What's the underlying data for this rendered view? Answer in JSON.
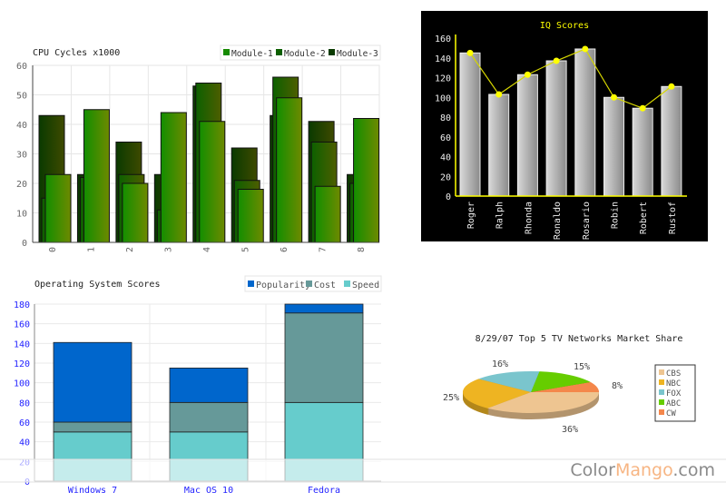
{
  "chart_data": [
    {
      "type": "bar",
      "title": "CPU Cycles x1000",
      "categories": [
        "0",
        "1",
        "2",
        "3",
        "4",
        "5",
        "6",
        "7",
        "8"
      ],
      "ylim": [
        0,
        60
      ],
      "yticks": [
        "0",
        "10",
        "20",
        "30",
        "40",
        "50",
        "60"
      ],
      "grid": true,
      "legend": "top-right",
      "series": [
        {
          "name": "Module-1",
          "values": [
            23,
            45,
            20,
            44,
            41,
            18,
            49,
            19,
            42
          ],
          "color": "#158a00"
        },
        {
          "name": "Module-2",
          "values": [
            15,
            22,
            23,
            11,
            54,
            21,
            56,
            34,
            20
          ],
          "color": "#0c5e00"
        },
        {
          "name": "Module-3",
          "values": [
            43,
            23,
            34,
            23,
            53,
            32,
            43,
            41,
            23
          ],
          "color": "#0a3a00"
        }
      ]
    },
    {
      "type": "bar",
      "title": "IQ Scores",
      "categories": [
        "Roger",
        "Ralph",
        "Rhonda",
        "Ronaldo",
        "Rosario",
        "Robin",
        "Robert",
        "Rustof"
      ],
      "values": [
        145,
        103,
        123,
        137,
        149,
        100,
        89,
        111
      ],
      "line_values": [
        145,
        103,
        123,
        137,
        149,
        100,
        89,
        111
      ],
      "ylim": [
        0,
        160
      ],
      "yticks": [
        "0",
        "20",
        "40",
        "60",
        "80",
        "100",
        "120",
        "140",
        "160"
      ],
      "background": "#000000",
      "accent": "#ffff00"
    },
    {
      "type": "bar",
      "stacked": true,
      "title": "Operating System Scores",
      "categories": [
        "Windows 7",
        "Mac OS 10",
        "Fedora"
      ],
      "ylim": [
        0,
        180
      ],
      "yticks": [
        "0",
        "20",
        "40",
        "60",
        "80",
        "100",
        "120",
        "140",
        "160",
        "180"
      ],
      "grid": true,
      "legend": "top-right",
      "series": [
        {
          "name": "Speed",
          "values": [
            50,
            50,
            80
          ],
          "color": "#66cccc"
        },
        {
          "name": "Cost",
          "values": [
            10,
            30,
            91
          ],
          "color": "#669999"
        },
        {
          "name": "Popularity",
          "values": [
            81,
            35,
            9
          ],
          "color": "#0066cc"
        }
      ],
      "legend_order": [
        "Popularity",
        "Cost",
        "Speed"
      ]
    },
    {
      "type": "pie",
      "title": "8/29/07 Top 5 TV Networks Market Share",
      "slices": [
        {
          "name": "CBS",
          "value": 36,
          "label": "36%",
          "color": "#eec591"
        },
        {
          "name": "NBC",
          "value": 25,
          "label": "25%",
          "color": "#eeb422"
        },
        {
          "name": "FOX",
          "value": 16,
          "label": "16%",
          "color": "#7ac5cd"
        },
        {
          "name": "ABC",
          "value": 15,
          "label": "15%",
          "color": "#66cd00"
        },
        {
          "name": "CW",
          "value": 8,
          "label": "8%",
          "color": "#f4874b"
        }
      ],
      "legend": "right"
    }
  ],
  "watermark": {
    "part1": "Color",
    "part2": "Mango",
    "part3": ".com"
  }
}
